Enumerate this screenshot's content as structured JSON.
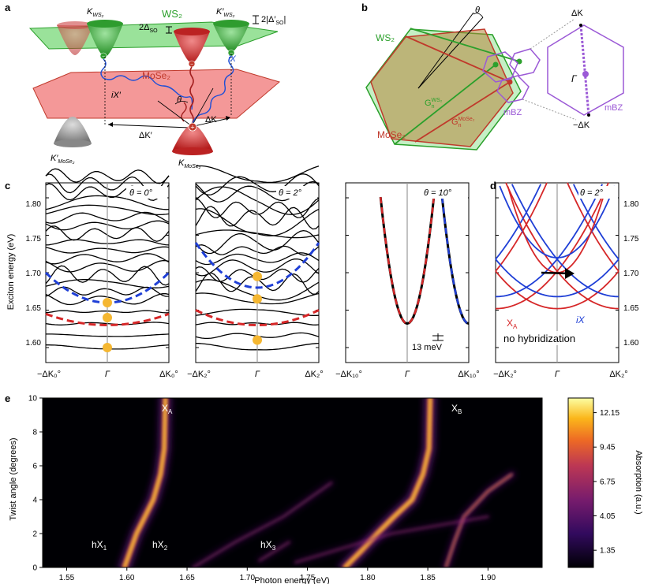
{
  "panels": {
    "a": {
      "letter": "a",
      "ws2": "WS₂",
      "mose2": "MoSe₂",
      "k_ws2": "K",
      "k_ws2_sub": "WS₂",
      "kp_ws2": "K′",
      "kp_ws2_sub": "WS₂",
      "two_dso": "2Δ",
      "two_dso_sub": "SO",
      "two_dso_prime": "2|Δ′",
      "two_dso_prime_sub": "SO",
      "two_dso_prime_end": "|",
      "theta": "θ",
      "ix": "iX",
      "ixp": "iX′",
      "dk": "ΔK",
      "dkp": "ΔK′",
      "kp_mose2": "K′",
      "kp_mose2_sub": "MoSe₂",
      "k_mose2": "K",
      "k_mose2_sub": "MoSe₂",
      "minus": "−",
      "plus": "+"
    },
    "b": {
      "letter": "b",
      "ws2": "WS₂",
      "mose2": "MoSe₂",
      "theta": "θ",
      "gws": "G",
      "gws_sub": "n",
      "gws_sup": "WS₂",
      "gmo": "G",
      "gmo_sub": "n",
      "gmo_sup": "MoSe₂",
      "mbz1": "mBZ",
      "mbz2": "mBZ",
      "dk_top": "ΔK",
      "dk_bot": "−ΔK",
      "gamma": "Γ"
    },
    "c": {
      "letter": "c",
      "ylabel": "Exciton energy (eV)",
      "yticks": [
        "1.80",
        "1.75",
        "1.70",
        "1.65",
        "1.60"
      ],
      "sub0": {
        "theta": "θ = 0°",
        "xl": "−ΔK₀°",
        "xm": "Γ",
        "xr": "ΔK₀°"
      },
      "sub2": {
        "theta": "θ = 2°",
        "xl": "−ΔK₂°",
        "xm": "Γ",
        "xr": "ΔK₂°"
      },
      "sub10": {
        "theta": "θ = 10°",
        "xl": "−ΔK₁₀°",
        "xm": "Γ",
        "xr": "ΔK₁₀°",
        "annot": "13 meV"
      }
    },
    "d": {
      "letter": "d",
      "theta": "θ = 2°",
      "xa": "X",
      "xa_sub": "A",
      "ix": "iX",
      "note": "no hybridization",
      "yticks": [
        "1.80",
        "1.75",
        "1.70",
        "1.65",
        "1.60"
      ],
      "xl": "−ΔK₂°",
      "xm": "Γ",
      "xr": "ΔK₂°"
    },
    "e": {
      "letter": "e",
      "xlabel": "Photon energy (eV)",
      "ylabel": "Twist angle (degrees)",
      "xticks": [
        "1.55",
        "1.60",
        "1.65",
        "1.70",
        "1.75",
        "1.80",
        "1.85",
        "1.90"
      ],
      "yticks": [
        "10",
        "8",
        "6",
        "4",
        "2",
        "0"
      ],
      "cbar_label": "Absorption (a.u.)",
      "cbar_ticks": [
        "12.15",
        "9.45",
        "6.75",
        "4.05",
        "1.35"
      ],
      "peaks": [
        {
          "main": "X",
          "sub": "A"
        },
        {
          "main": "X",
          "sub": "B"
        },
        {
          "main": "hX",
          "sub": "1"
        },
        {
          "main": "hX",
          "sub": "2"
        },
        {
          "main": "hX",
          "sub": "3"
        }
      ]
    }
  },
  "colors": {
    "ws2": "#2ca02c",
    "mose2": "#d62728",
    "blue": "#1f3fd6",
    "purple": "#9b59d6",
    "marker": "#f5b731"
  },
  "chart_data": [
    {
      "panel": "c-theta0",
      "type": "line",
      "x_range": [
        -1,
        1
      ],
      "ylim": [
        1.58,
        1.82
      ],
      "yticks": [
        1.6,
        1.65,
        1.7,
        1.75,
        1.8
      ],
      "markers": [
        1.6,
        1.64,
        1.66
      ],
      "dashed_series": [
        {
          "color": "blue",
          "gamma_value": 1.66,
          "edge_value": 1.7
        },
        {
          "color": "red",
          "gamma_value": 1.63,
          "edge_value": 1.645
        }
      ]
    },
    {
      "panel": "c-theta2",
      "type": "line",
      "x_range": [
        -1,
        1
      ],
      "ylim": [
        1.58,
        1.82
      ],
      "markers": [
        1.61,
        1.665,
        1.695
      ],
      "dashed_series": [
        {
          "color": "blue",
          "gamma_value": 1.68,
          "edge_value": 1.74
        },
        {
          "color": "red",
          "gamma_value": 1.63,
          "edge_value": 1.65
        }
      ]
    },
    {
      "panel": "c-theta10",
      "type": "line",
      "x_range": [
        -1,
        1
      ],
      "ylim": [
        1.58,
        1.82
      ],
      "minimum": 1.632,
      "annotation_meV": 13
    },
    {
      "panel": "d",
      "type": "line",
      "x_range": [
        -1,
        1
      ],
      "ylim": [
        1.58,
        1.82
      ],
      "series": [
        {
          "name": "X_A"
        },
        {
          "name": "iX"
        }
      ]
    },
    {
      "panel": "e",
      "type": "heatmap",
      "x_range": [
        1.53,
        1.945
      ],
      "xticks": [
        1.55,
        1.6,
        1.65,
        1.7,
        1.75,
        1.8,
        1.85,
        1.9
      ],
      "y_range": [
        0,
        10
      ],
      "yticks": [
        0,
        2,
        4,
        6,
        8,
        10
      ],
      "colorbar_ticks": [
        1.35,
        4.05,
        6.75,
        9.45,
        12.15
      ],
      "ridges": [
        {
          "name": "X_A",
          "points": [
            [
              1.598,
              0
            ],
            [
              1.603,
              1
            ],
            [
              1.608,
              2
            ],
            [
              1.615,
              3
            ],
            [
              1.622,
              4
            ],
            [
              1.628,
              5.5
            ],
            [
              1.631,
              7
            ],
            [
              1.632,
              10
            ]
          ],
          "intensity": 1.0
        },
        {
          "name": "X_B",
          "points": [
            [
              1.781,
              0
            ],
            [
              1.795,
              1
            ],
            [
              1.808,
              2
            ],
            [
              1.822,
              3
            ],
            [
              1.837,
              4
            ],
            [
              1.846,
              5.5
            ],
            [
              1.851,
              7
            ],
            [
              1.852,
              10
            ]
          ],
          "intensity": 1.0
        },
        {
          "name": "hX_2",
          "points": [
            [
              1.655,
              0
            ],
            [
              1.69,
              1.5
            ],
            [
              1.73,
              3
            ],
            [
              1.77,
              5
            ]
          ],
          "intensity": 0.28
        },
        {
          "name": "hX_3",
          "points": [
            [
              1.71,
              0.4
            ],
            [
              1.735,
              1.5
            ]
          ],
          "intensity": 0.2
        },
        {
          "name": "upper",
          "points": [
            [
              1.865,
              0
            ],
            [
              1.872,
              1.5
            ],
            [
              1.88,
              3
            ],
            [
              1.9,
              4.5
            ],
            [
              1.92,
              5.5
            ]
          ],
          "intensity": 0.55
        },
        {
          "name": "faint",
          "points": [
            [
              1.74,
              0.3
            ],
            [
              1.82,
              2
            ],
            [
              1.9,
              3
            ]
          ],
          "intensity": 0.15
        }
      ]
    }
  ]
}
